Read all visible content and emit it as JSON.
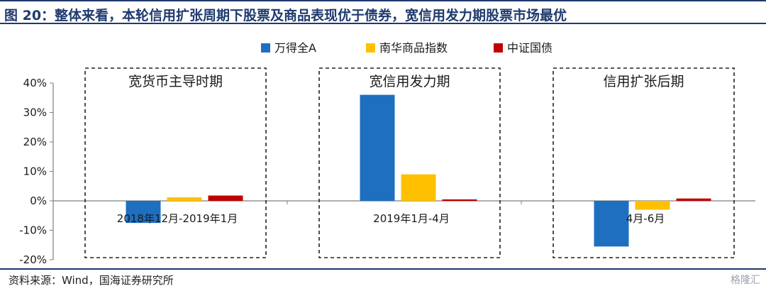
{
  "header": {
    "title": "图 20：整体来看，本轮信用扩张周期下股票及商品表现优于债券，宽信用发力期股票市场最优"
  },
  "footer": {
    "source": "资料来源：Wind，国海证券研究所",
    "watermark": "格隆汇"
  },
  "chart_data": {
    "type": "bar",
    "categories": [
      "2018年12月-2019年1月",
      "2019年1月-4月",
      "4月-6月"
    ],
    "series": [
      {
        "name": "万得全A",
        "color": "#1f6fc0",
        "values": [
          -7.5,
          36,
          -15.5
        ]
      },
      {
        "name": "南华商品指数",
        "color": "#ffc000",
        "values": [
          1.2,
          9,
          -3
        ]
      },
      {
        "name": "中证国债",
        "color": "#c00000",
        "values": [
          1.8,
          0.5,
          0.8
        ]
      }
    ],
    "y_ticks": [
      "40%",
      "30%",
      "20%",
      "10%",
      "0%",
      "-10%",
      "-20%"
    ],
    "ylim": [
      -20,
      40
    ],
    "annotations": [
      "宽货币主导时期",
      "宽信用发力期",
      "信用扩张后期"
    ],
    "legend_position": "top-center",
    "grid": false
  }
}
